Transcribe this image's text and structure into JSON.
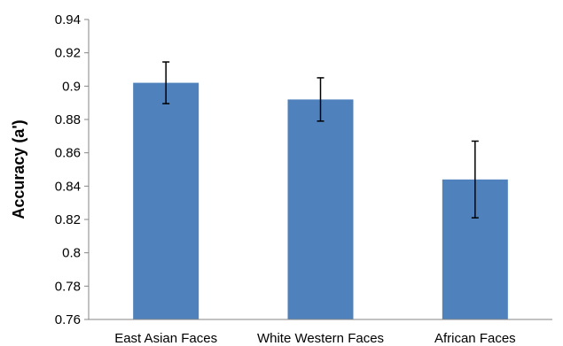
{
  "chart_data": {
    "type": "bar",
    "title": "",
    "xlabel": "",
    "ylabel": "Accuracy (a')",
    "categories": [
      "East Asian Faces",
      "White Western Faces",
      "African Faces"
    ],
    "values": [
      0.902,
      0.892,
      0.844
    ],
    "errors": [
      0.0125,
      0.013,
      0.023
    ],
    "ylim": [
      0.76,
      0.94
    ],
    "yticks": [
      0.76,
      0.78,
      0.8,
      0.82,
      0.84,
      0.86,
      0.88,
      0.9,
      0.92,
      0.94
    ],
    "ytick_labels": [
      "0.76",
      "0.78",
      "0.8",
      "0.82",
      "0.84",
      "0.86",
      "0.88",
      "0.9",
      "0.92",
      "0.94"
    ],
    "bar_color": "#4f81bd",
    "error_bar_color": "#000000",
    "grid": false,
    "legend": "none"
  }
}
